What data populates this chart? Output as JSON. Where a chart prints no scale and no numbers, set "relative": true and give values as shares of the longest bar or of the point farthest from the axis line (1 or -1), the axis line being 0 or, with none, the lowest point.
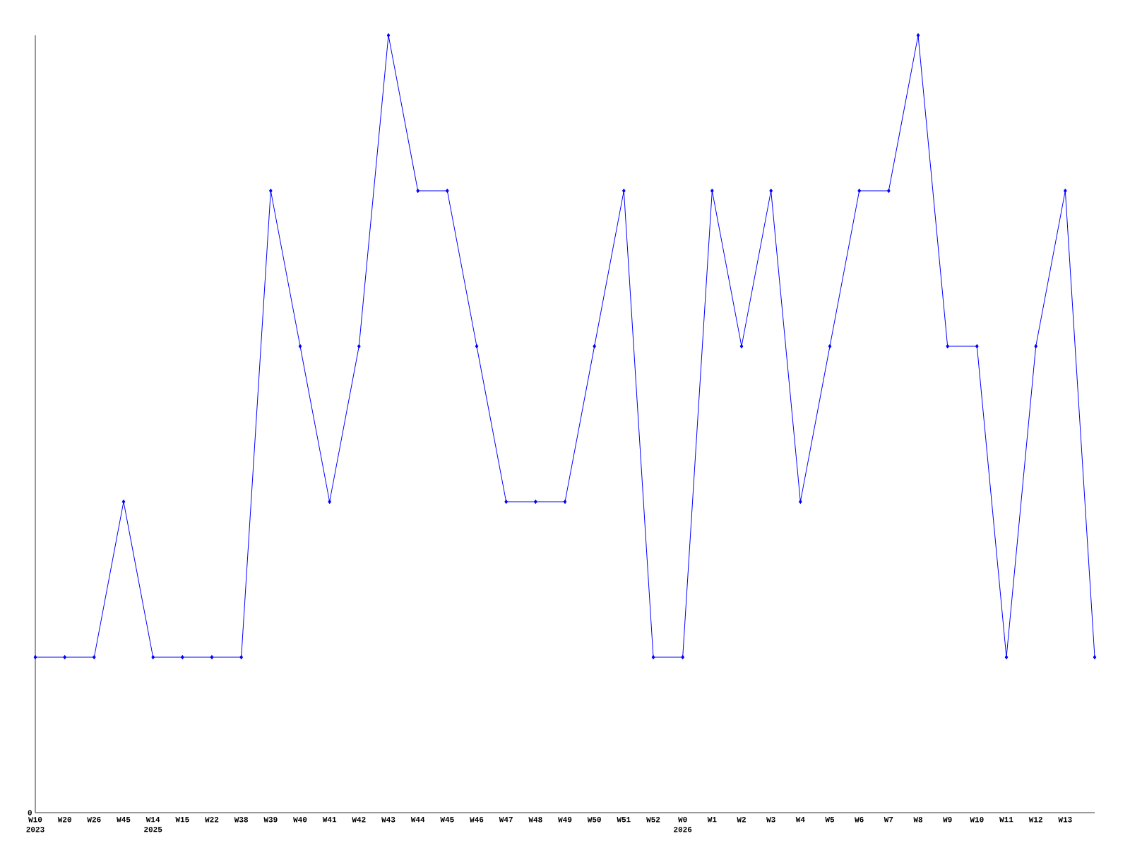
{
  "chart_data": {
    "type": "line",
    "relative": true,
    "color": "#0000ff",
    "marker": "diamond",
    "categories": [
      "W10 2023",
      "W20",
      "W26",
      "W45",
      "W14 2025",
      "W15",
      "W22",
      "W38",
      "W39",
      "W40",
      "W41",
      "W42",
      "W43",
      "W44",
      "W45",
      "W46",
      "W47",
      "W48",
      "W49",
      "W50",
      "W51",
      "W52",
      "W0 2026",
      "W1",
      "W2",
      "W3",
      "W4",
      "W5",
      "W6",
      "W7",
      "W8",
      "W9",
      "W10",
      "W11",
      "W12",
      "W13",
      null
    ],
    "values": [
      0.2,
      0.2,
      0.2,
      0.4,
      0.2,
      0.2,
      0.2,
      0.2,
      0.8,
      0.6,
      0.4,
      0.6,
      1,
      0.8,
      0.8,
      0.6,
      0.4,
      0.4,
      0.4,
      0.6,
      0.8,
      0.2,
      0.2,
      0.8,
      0.6,
      0.8,
      0.4,
      0.6,
      0.8,
      0.8,
      1,
      0.6,
      0.6,
      0.2,
      0.6,
      0.8,
      0.2
    ],
    "annotations": [
      "0"
    ]
  }
}
